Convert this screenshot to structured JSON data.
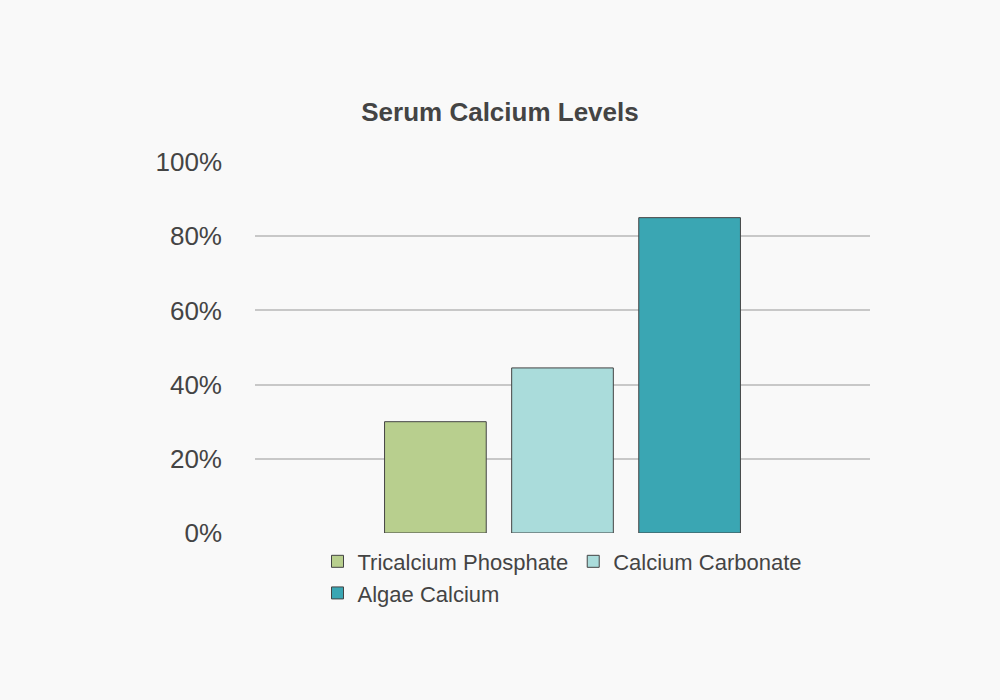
{
  "chart_data": {
    "type": "bar",
    "title": "Serum Calcium Levels",
    "categories": [
      null
    ],
    "series": [
      {
        "name": "Tricalcium Phosphate",
        "color": "#b8cf8e",
        "values": [
          30
        ]
      },
      {
        "name": "Calcium Carbonate",
        "color": "#aadcdb",
        "values": [
          44.5
        ]
      },
      {
        "name": "Algae Calcium",
        "color": "#3aa6b3",
        "values": [
          85
        ]
      }
    ],
    "ylim": [
      0,
      100
    ],
    "yticks": [
      {
        "value": 0,
        "label": "0%"
      },
      {
        "value": 20,
        "label": "20%"
      },
      {
        "value": 40,
        "label": "40%"
      },
      {
        "value": 60,
        "label": "60%"
      },
      {
        "value": 80,
        "label": "80%"
      },
      {
        "value": 100,
        "label": "100%"
      }
    ],
    "grid": true,
    "legend": "bottom",
    "tick_labels": "y"
  }
}
